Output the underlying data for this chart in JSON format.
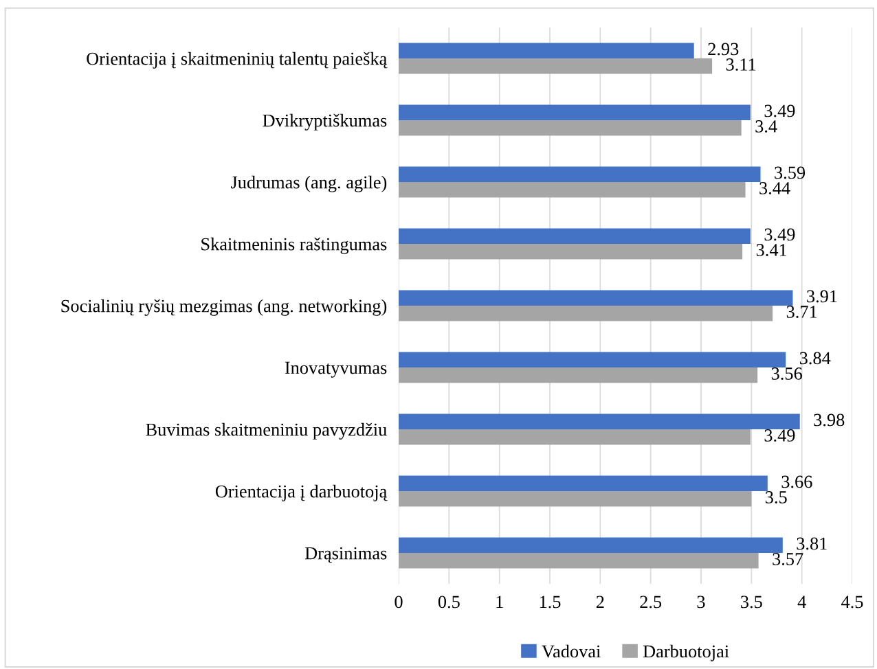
{
  "chart_data": {
    "type": "bar",
    "orientation": "horizontal",
    "categories": [
      "Orientacija į skaitmeninių talentų paiešką",
      "Dvikryptiškumas",
      "Judrumas (ang. agile)",
      "Skaitmeninis raštingumas",
      "Socialinių ryšių mezgimas (ang. networking)",
      "Inovatyvumas",
      "Buvimas skaitmeniniu pavyzdžiu",
      "Orientacija į darbuotoją",
      "Drąsinimas"
    ],
    "series": [
      {
        "name": "Vadovai",
        "color": "#4472c4",
        "values": [
          2.93,
          3.49,
          3.59,
          3.49,
          3.91,
          3.84,
          3.98,
          3.66,
          3.81
        ]
      },
      {
        "name": "Darbuotojai",
        "color": "#a5a5a5",
        "values": [
          3.11,
          3.4,
          3.44,
          3.41,
          3.71,
          3.56,
          3.49,
          3.5,
          3.57
        ]
      }
    ],
    "xlim": [
      0,
      4.5
    ],
    "xticks": [
      0,
      0.5,
      1,
      1.5,
      2,
      2.5,
      3,
      3.5,
      4,
      4.5
    ],
    "grid": "x",
    "legend": "bottom",
    "data_labels": true
  }
}
